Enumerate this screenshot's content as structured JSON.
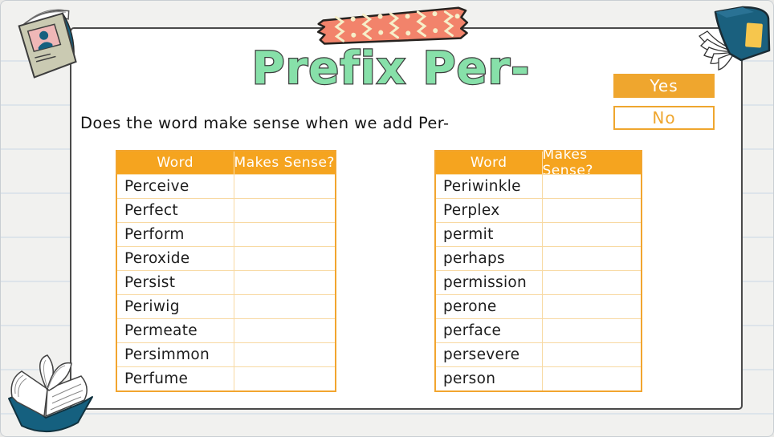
{
  "slide": {
    "title": "Prefix Per-",
    "question": "Does the word make sense when we add Per-"
  },
  "answer_buttons": {
    "yes_label": "Yes",
    "no_label": "No"
  },
  "tables": [
    {
      "headers": [
        "Word",
        "Makes Sense?"
      ],
      "rows": [
        "Perceive",
        "Perfect",
        "Perform",
        "Peroxide",
        "Persist",
        "Periwig",
        "Permeate",
        "Persimmon",
        "Perfume"
      ]
    },
    {
      "headers": [
        "Word",
        "Makes Sense?"
      ],
      "rows": [
        "Periwinkle",
        "Perplex",
        "permit",
        "perhaps",
        "permission",
        "perone",
        "perface",
        "persevere",
        "person"
      ]
    }
  ],
  "colors": {
    "accent_orange": "#F2A52F",
    "row_line_orange": "#F8D9A2",
    "title_green": "#87E0A9",
    "tape_coral": "#F2836B",
    "tape_cream": "#F6EFC9",
    "book_teal": "#15607F",
    "magazine_beige": "#CACAB2",
    "photo_pink": "#EFB7B7",
    "card_border": "#4A4A4A"
  },
  "decorations": {
    "top_left": "magazine-with-portrait",
    "top_center": "washi-tape",
    "top_right": "teal-book",
    "bottom_left": "open-book"
  }
}
